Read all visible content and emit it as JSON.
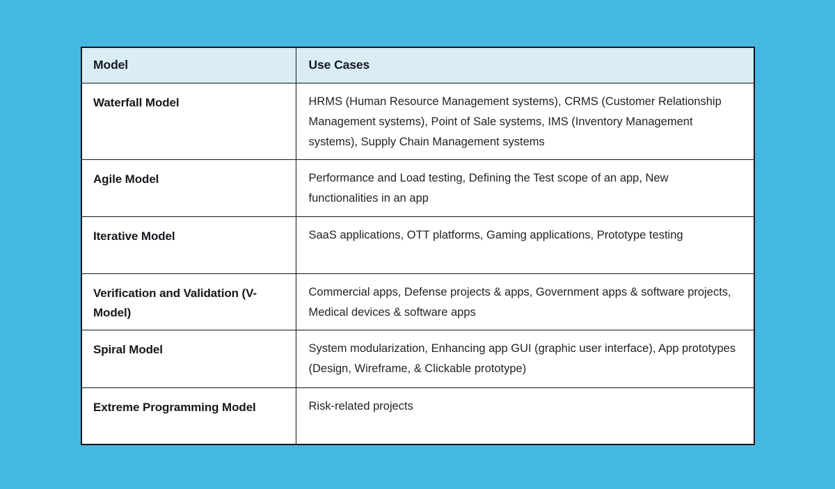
{
  "table": {
    "colors": {
      "page_background": "#45b8e2",
      "header_background": "#daedf7",
      "border": "#0f151d",
      "cell_background": "#ffffff",
      "heading_text": "#15181c",
      "body_text": "#212428"
    },
    "headers": {
      "model": "Model",
      "use_cases": "Use Cases"
    },
    "rows": [
      {
        "model": "Waterfall Model",
        "use_cases": "HRMS (Human Resource Management systems), CRMS (Customer Relationship Management systems), Point of Sale systems, IMS (Inventory Management systems), Supply Chain Management systems"
      },
      {
        "model": "Agile Model",
        "use_cases": "Performance and Load testing, Defining the Test scope of an app, New functionalities in an app"
      },
      {
        "model": "Iterative Model",
        "use_cases": "SaaS applications, OTT platforms, Gaming applications, Prototype testing"
      },
      {
        "model": "Verification and Validation (V-Model)",
        "use_cases": "Commercial apps, Defense projects & apps, Government apps & software projects, Medical devices & software apps"
      },
      {
        "model": "Spiral Model",
        "use_cases": "System modularization, Enhancing app GUI (graphic user interface), App prototypes (Design, Wireframe, & Clickable prototype)"
      },
      {
        "model": "Extreme Programming Model",
        "use_cases": "Risk-related projects"
      }
    ]
  }
}
